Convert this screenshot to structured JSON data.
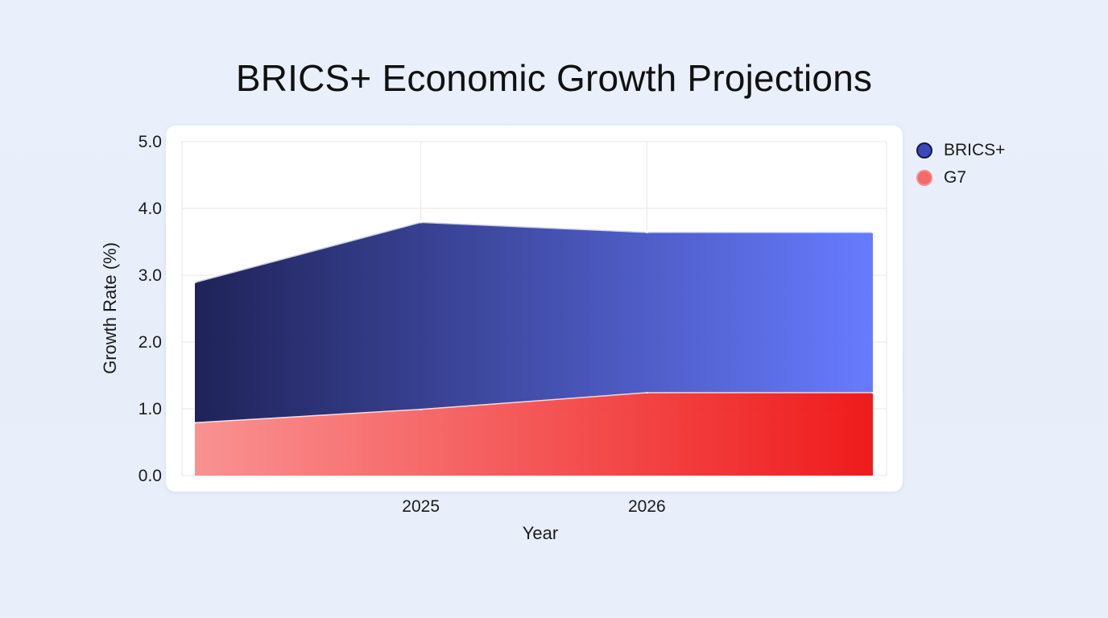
{
  "chart_data": {
    "type": "area",
    "title": "BRICS+ Economic Growth Projections",
    "xlabel": "Year",
    "ylabel": "Growth Rate (%)",
    "x": [
      2024,
      2025,
      2026,
      2027
    ],
    "x_tick_labels": [
      {
        "x": 2025,
        "label": "2025"
      },
      {
        "x": 2026,
        "label": "2026"
      }
    ],
    "y_ticks": [
      "0.0",
      "1.0",
      "2.0",
      "3.0",
      "4.0",
      "5.0"
    ],
    "ylim": [
      0,
      5
    ],
    "stacked": true,
    "grid": true,
    "legend_position": "right-top",
    "series": [
      {
        "name": "G7",
        "values": [
          0.8,
          1.0,
          1.25,
          1.25
        ],
        "color_start": "#f98c8c",
        "color_end": "#ee0f0f",
        "legend_color": "#f26a6a"
      },
      {
        "name": "BRICS+",
        "values": [
          2.1,
          2.8,
          2.4,
          2.4
        ],
        "color_start": "#13174f",
        "color_end": "#5f74ff",
        "legend_color": "#3b48b8"
      }
    ]
  }
}
